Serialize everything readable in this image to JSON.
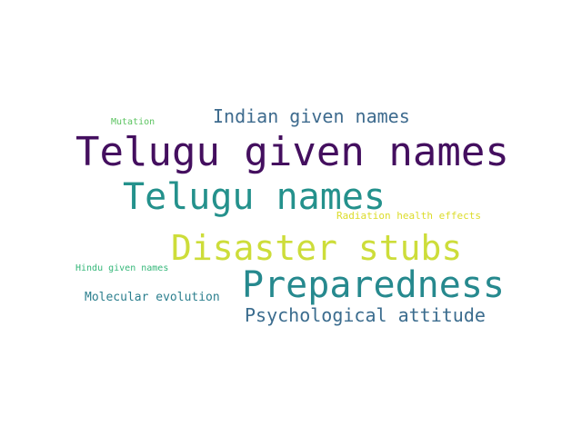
{
  "words": [
    {
      "text": "Telugu given names",
      "color": "#440f5f"
    },
    {
      "text": "Telugu names",
      "color": "#24918c"
    },
    {
      "text": "Disaster stubs",
      "color": "#cddd3a"
    },
    {
      "text": "Preparedness",
      "color": "#26898e"
    },
    {
      "text": "Indian given names",
      "color": "#3e6b8e"
    },
    {
      "text": "Psychological attitude",
      "color": "#3b6c8e"
    },
    {
      "text": "Molecular evolution",
      "color": "#2c7f8e"
    },
    {
      "text": "Radiation health effects",
      "color": "#dcdc2a"
    },
    {
      "text": "Mutation",
      "color": "#5cc461"
    },
    {
      "text": "Hindu given names",
      "color": "#35b779"
    }
  ]
}
